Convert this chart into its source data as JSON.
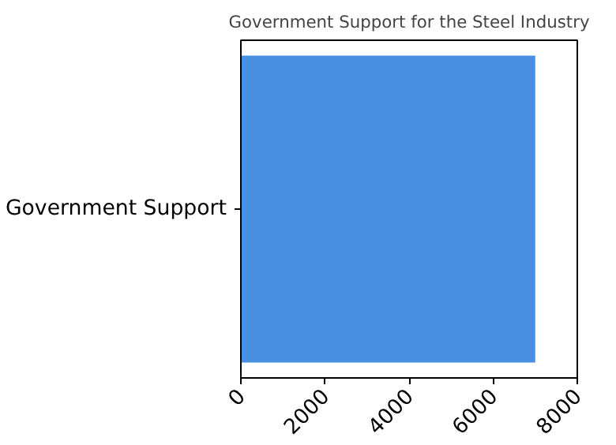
{
  "chart_data": {
    "type": "bar",
    "orientation": "horizontal",
    "title": "Government Support for the Steel Industry",
    "categories": [
      "Government Support"
    ],
    "values": [
      7000
    ],
    "color": "#4a90e2",
    "xlim": [
      0,
      8000
    ],
    "xticks": [
      0,
      2000,
      4000,
      6000,
      8000
    ],
    "grid": false
  }
}
